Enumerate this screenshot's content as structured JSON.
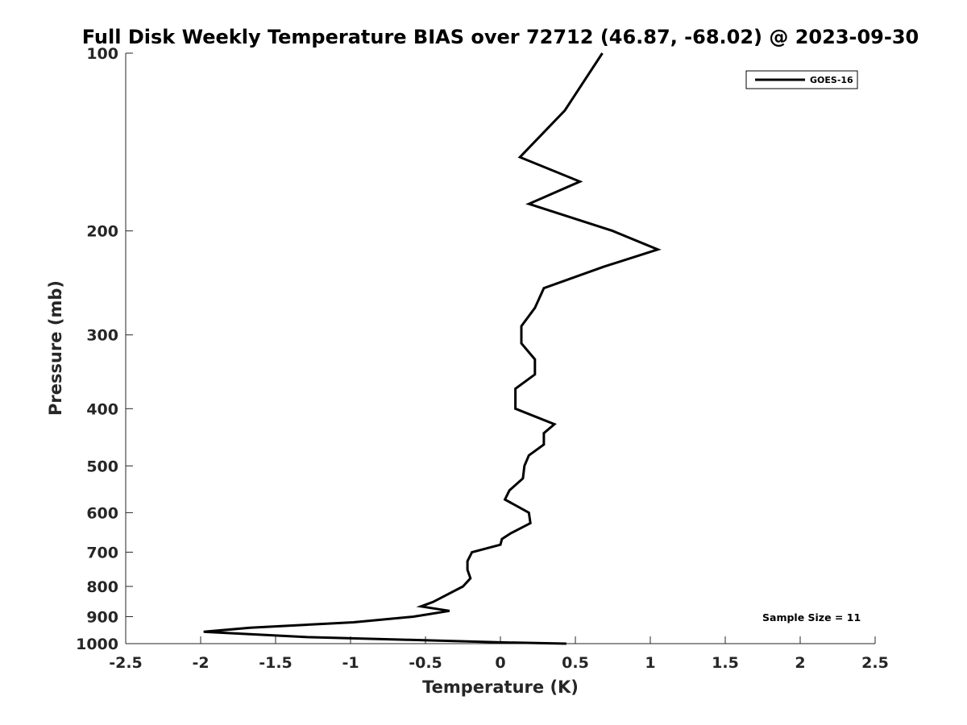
{
  "chart_data": {
    "type": "line",
    "title": "Full Disk Weekly Temperature BIAS over 72712 (46.87, -68.02) @ 2023-09-30",
    "xlabel": "Temperature (K)",
    "ylabel": "Pressure (mb)",
    "xlim": [
      -2.5,
      2.5
    ],
    "ylim": [
      100,
      1000
    ],
    "yscale": "log",
    "y_reversed": true,
    "x_ticks": [
      "-2.5",
      "-2",
      "-1.5",
      "-1",
      "-0.5",
      "0",
      "0.5",
      "1",
      "1.5",
      "2",
      "2.5"
    ],
    "y_ticks": [
      "100",
      "200",
      "300",
      "400",
      "500",
      "600",
      "700",
      "800",
      "900",
      "1000"
    ],
    "grid": false,
    "legend_position": "top-right",
    "series": [
      {
        "name": "GOES-16",
        "color": "#000000",
        "points": [
          {
            "x": 0.68,
            "p": 100
          },
          {
            "x": 0.43,
            "p": 125
          },
          {
            "x": 0.13,
            "p": 150
          },
          {
            "x": 0.53,
            "p": 165
          },
          {
            "x": 0.19,
            "p": 180
          },
          {
            "x": 0.75,
            "p": 200
          },
          {
            "x": 1.05,
            "p": 215
          },
          {
            "x": 0.69,
            "p": 230
          },
          {
            "x": 0.29,
            "p": 250
          },
          {
            "x": 0.23,
            "p": 270
          },
          {
            "x": 0.14,
            "p": 290
          },
          {
            "x": 0.14,
            "p": 310
          },
          {
            "x": 0.23,
            "p": 330
          },
          {
            "x": 0.23,
            "p": 350
          },
          {
            "x": 0.1,
            "p": 370
          },
          {
            "x": 0.1,
            "p": 400
          },
          {
            "x": 0.36,
            "p": 425
          },
          {
            "x": 0.29,
            "p": 440
          },
          {
            "x": 0.29,
            "p": 460
          },
          {
            "x": 0.19,
            "p": 480
          },
          {
            "x": 0.16,
            "p": 500
          },
          {
            "x": 0.15,
            "p": 525
          },
          {
            "x": 0.06,
            "p": 550
          },
          {
            "x": 0.03,
            "p": 570
          },
          {
            "x": 0.19,
            "p": 600
          },
          {
            "x": 0.2,
            "p": 625
          },
          {
            "x": 0.07,
            "p": 650
          },
          {
            "x": 0.01,
            "p": 665
          },
          {
            "x": 0.0,
            "p": 680
          },
          {
            "x": -0.19,
            "p": 700
          },
          {
            "x": -0.22,
            "p": 725
          },
          {
            "x": -0.22,
            "p": 750
          },
          {
            "x": -0.2,
            "p": 775
          },
          {
            "x": -0.25,
            "p": 800
          },
          {
            "x": -0.45,
            "p": 850
          },
          {
            "x": -0.53,
            "p": 865
          },
          {
            "x": -0.34,
            "p": 880
          },
          {
            "x": -0.58,
            "p": 900
          },
          {
            "x": -0.98,
            "p": 920
          },
          {
            "x": -1.67,
            "p": 940
          },
          {
            "x": -1.98,
            "p": 955
          },
          {
            "x": -1.29,
            "p": 975
          },
          {
            "x": -0.62,
            "p": 985
          },
          {
            "x": 0.0,
            "p": 995
          },
          {
            "x": 0.44,
            "p": 1000
          }
        ]
      }
    ],
    "annotations": [
      "Sample Size = 11"
    ]
  }
}
